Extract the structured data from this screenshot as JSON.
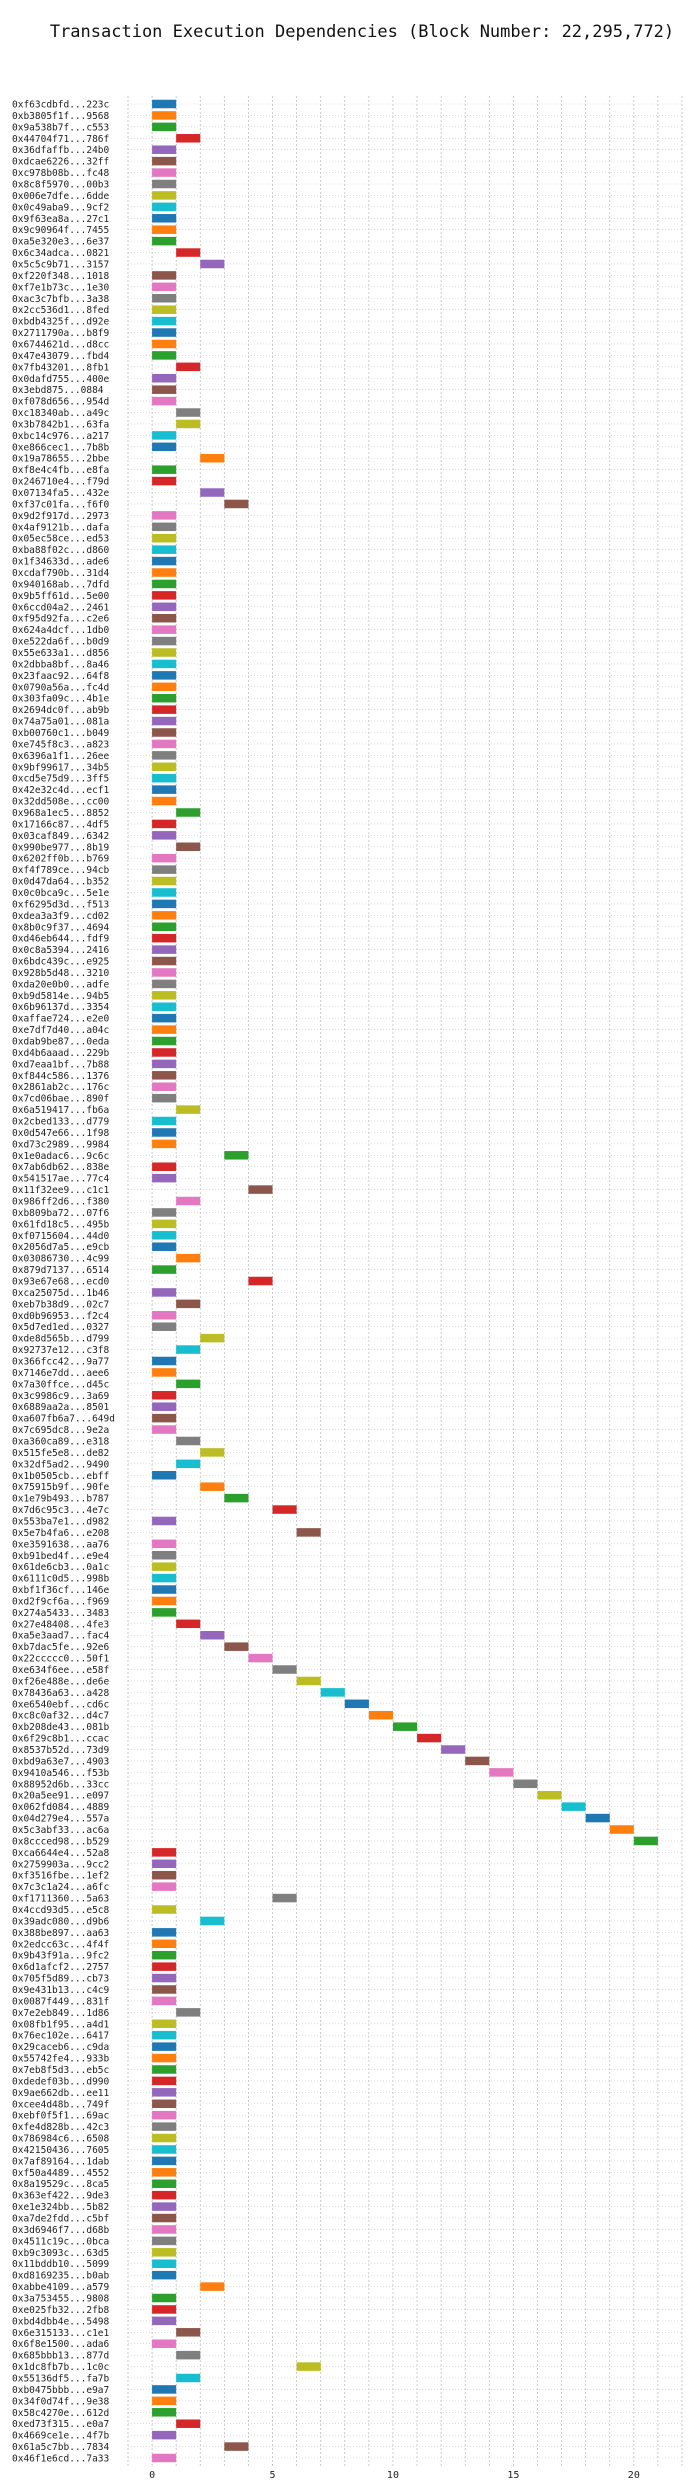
{
  "chart_data": {
    "type": "gantt",
    "title": "Transaction Execution Dependencies (Block Number: 22,295,772)",
    "xlabel": "",
    "ylabel": "",
    "xlim": [
      -1,
      22
    ],
    "x_ticks": [
      0,
      5,
      10,
      15,
      20
    ],
    "grid": true,
    "legend": "none",
    "palette": [
      "#1f77b4",
      "#ff7f0e",
      "#2ca02c",
      "#d62728",
      "#9467bd",
      "#8c564b",
      "#e377c2",
      "#7f7f7f",
      "#bcbd22",
      "#17becf"
    ],
    "transactions": [
      {
        "label": "0xf63cdbfd...223c",
        "start": 0,
        "end": 1
      },
      {
        "label": "0xb3805f1f...9568",
        "start": 0,
        "end": 1
      },
      {
        "label": "0x9a538b7f...c553",
        "start": 0,
        "end": 1
      },
      {
        "label": "0x44704f71...786f",
        "start": 1,
        "end": 2
      },
      {
        "label": "0x36dfaffb...24b0",
        "start": 0,
        "end": 1
      },
      {
        "label": "0xdcae6226...32ff",
        "start": 0,
        "end": 1
      },
      {
        "label": "0xc978b08b...fc48",
        "start": 0,
        "end": 1
      },
      {
        "label": "0x8c8f5970...00b3",
        "start": 0,
        "end": 1
      },
      {
        "label": "0x006e7dfe...6dde",
        "start": 0,
        "end": 1
      },
      {
        "label": "0x0c49aba9...9cf2",
        "start": 0,
        "end": 1
      },
      {
        "label": "0x9f63ea8a...27c1",
        "start": 0,
        "end": 1
      },
      {
        "label": "0x9c90964f...7455",
        "start": 0,
        "end": 1
      },
      {
        "label": "0xa5e320e3...6e37",
        "start": 0,
        "end": 1
      },
      {
        "label": "0x6c34adca...0821",
        "start": 1,
        "end": 2
      },
      {
        "label": "0x5c5c9b71...3157",
        "start": 2,
        "end": 3
      },
      {
        "label": "0xf220f348...1018",
        "start": 0,
        "end": 1
      },
      {
        "label": "0xf7e1b73c...1e30",
        "start": 0,
        "end": 1
      },
      {
        "label": "0xac3c7bfb...3a38",
        "start": 0,
        "end": 1
      },
      {
        "label": "0x2cc536d1...8fed",
        "start": 0,
        "end": 1
      },
      {
        "label": "0xbdb4325f...d92e",
        "start": 0,
        "end": 1
      },
      {
        "label": "0x2711790a...b8f9",
        "start": 0,
        "end": 1
      },
      {
        "label": "0x6744621d...d8cc",
        "start": 0,
        "end": 1
      },
      {
        "label": "0x47e43079...fbd4",
        "start": 0,
        "end": 1
      },
      {
        "label": "0x7fb43201...8fb1",
        "start": 1,
        "end": 2
      },
      {
        "label": "0x0dafd755...400e",
        "start": 0,
        "end": 1
      },
      {
        "label": "0x3ebd875...0884",
        "start": 0,
        "end": 1
      },
      {
        "label": "0xf078d656...954d",
        "start": 0,
        "end": 1
      },
      {
        "label": "0xc18340ab...a49c",
        "start": 1,
        "end": 2
      },
      {
        "label": "0x3b7842b1...63fa",
        "start": 1,
        "end": 2
      },
      {
        "label": "0xbc14c976...a217",
        "start": 0,
        "end": 1
      },
      {
        "label": "0xe866cec1...7b8b",
        "start": 0,
        "end": 1
      },
      {
        "label": "0x19a78655...2bbe",
        "start": 2,
        "end": 3
      },
      {
        "label": "0xf8e4c4fb...e8fa",
        "start": 0,
        "end": 1
      },
      {
        "label": "0x246710e4...f79d",
        "start": 0,
        "end": 1
      },
      {
        "label": "0x07134fa5...432e",
        "start": 2,
        "end": 3
      },
      {
        "label": "0xf37c01fa...f6f0",
        "start": 3,
        "end": 4
      },
      {
        "label": "0x9d2f917d...2973",
        "start": 0,
        "end": 1
      },
      {
        "label": "0x4af9121b...dafa",
        "start": 0,
        "end": 1
      },
      {
        "label": "0x05ec58ce...ed53",
        "start": 0,
        "end": 1
      },
      {
        "label": "0xba88f02c...d860",
        "start": 0,
        "end": 1
      },
      {
        "label": "0x1f34633d...ade6",
        "start": 0,
        "end": 1
      },
      {
        "label": "0xcdaf790b...31d4",
        "start": 0,
        "end": 1
      },
      {
        "label": "0x940168ab...7dfd",
        "start": 0,
        "end": 1
      },
      {
        "label": "0x9b5ff61d...5e00",
        "start": 0,
        "end": 1
      },
      {
        "label": "0x6ccd04a2...2461",
        "start": 0,
        "end": 1
      },
      {
        "label": "0xf95d92fa...c2e6",
        "start": 0,
        "end": 1
      },
      {
        "label": "0x624a4dcf...1db0",
        "start": 0,
        "end": 1
      },
      {
        "label": "0xe522da6f...b0d9",
        "start": 0,
        "end": 1
      },
      {
        "label": "0x55e633a1...d856",
        "start": 0,
        "end": 1
      },
      {
        "label": "0x2dbba8bf...8a46",
        "start": 0,
        "end": 1
      },
      {
        "label": "0x23faac92...64f8",
        "start": 0,
        "end": 1
      },
      {
        "label": "0x0790a56a...fc4d",
        "start": 0,
        "end": 1
      },
      {
        "label": "0x303fa09c...4b1e",
        "start": 0,
        "end": 1
      },
      {
        "label": "0x2694dc0f...ab9b",
        "start": 0,
        "end": 1
      },
      {
        "label": "0x74a75a01...081a",
        "start": 0,
        "end": 1
      },
      {
        "label": "0xb00760c1...b049",
        "start": 0,
        "end": 1
      },
      {
        "label": "0xe745f8c3...a823",
        "start": 0,
        "end": 1
      },
      {
        "label": "0x6396a1f1...26ee",
        "start": 0,
        "end": 1
      },
      {
        "label": "0x9bf99617...34b5",
        "start": 0,
        "end": 1
      },
      {
        "label": "0xcd5e75d9...3ff5",
        "start": 0,
        "end": 1
      },
      {
        "label": "0x42e32c4d...ecf1",
        "start": 0,
        "end": 1
      },
      {
        "label": "0x32dd508e...cc00",
        "start": 0,
        "end": 1
      },
      {
        "label": "0x968a1ec5...8852",
        "start": 1,
        "end": 2
      },
      {
        "label": "0x17166c87...4df5",
        "start": 0,
        "end": 1
      },
      {
        "label": "0x03caf849...6342",
        "start": 0,
        "end": 1
      },
      {
        "label": "0x990be977...8b19",
        "start": 1,
        "end": 2
      },
      {
        "label": "0x6202ff0b...b769",
        "start": 0,
        "end": 1
      },
      {
        "label": "0xf4f789ce...94cb",
        "start": 0,
        "end": 1
      },
      {
        "label": "0x0d47da64...b352",
        "start": 0,
        "end": 1
      },
      {
        "label": "0x0c0bca9c...5e1e",
        "start": 0,
        "end": 1
      },
      {
        "label": "0xf6295d3d...f513",
        "start": 0,
        "end": 1
      },
      {
        "label": "0xdea3a3f9...cd02",
        "start": 0,
        "end": 1
      },
      {
        "label": "0x8b0c9f37...4694",
        "start": 0,
        "end": 1
      },
      {
        "label": "0xd46eb644...fdf9",
        "start": 0,
        "end": 1
      },
      {
        "label": "0x0c8a5394...2416",
        "start": 0,
        "end": 1
      },
      {
        "label": "0x6bdc439c...e925",
        "start": 0,
        "end": 1
      },
      {
        "label": "0x928b5d48...3210",
        "start": 0,
        "end": 1
      },
      {
        "label": "0xda20e0b0...adfe",
        "start": 0,
        "end": 1
      },
      {
        "label": "0xb9d5814e...94b5",
        "start": 0,
        "end": 1
      },
      {
        "label": "0x6b96137d...3354",
        "start": 0,
        "end": 1
      },
      {
        "label": "0xaffae724...e2e0",
        "start": 0,
        "end": 1
      },
      {
        "label": "0xe7df7d40...a04c",
        "start": 0,
        "end": 1
      },
      {
        "label": "0xdab9be87...0eda",
        "start": 0,
        "end": 1
      },
      {
        "label": "0xd4b6aaad...229b",
        "start": 0,
        "end": 1
      },
      {
        "label": "0xd7eaa1bf...7b88",
        "start": 0,
        "end": 1
      },
      {
        "label": "0xf844c586...1376",
        "start": 0,
        "end": 1
      },
      {
        "label": "0x2861ab2c...176c",
        "start": 0,
        "end": 1
      },
      {
        "label": "0x7cd06bae...890f",
        "start": 0,
        "end": 1
      },
      {
        "label": "0x6a519417...fb6a",
        "start": 1,
        "end": 2
      },
      {
        "label": "0x2cbed133...d779",
        "start": 0,
        "end": 1
      },
      {
        "label": "0x0d547e66...1f98",
        "start": 0,
        "end": 1
      },
      {
        "label": "0xd73c2989...9984",
        "start": 0,
        "end": 1
      },
      {
        "label": "0x1e0adac6...9c6c",
        "start": 3,
        "end": 4
      },
      {
        "label": "0x7ab6db62...838e",
        "start": 0,
        "end": 1
      },
      {
        "label": "0x541517ae...77c4",
        "start": 0,
        "end": 1
      },
      {
        "label": "0x11f32ee9...c1c1",
        "start": 4,
        "end": 5
      },
      {
        "label": "0x986ff2d6...f380",
        "start": 1,
        "end": 2
      },
      {
        "label": "0xb809ba72...07f6",
        "start": 0,
        "end": 1
      },
      {
        "label": "0x61fd18c5...495b",
        "start": 0,
        "end": 1
      },
      {
        "label": "0xf0715604...44d0",
        "start": 0,
        "end": 1
      },
      {
        "label": "0x2056d7a5...e9cb",
        "start": 0,
        "end": 1
      },
      {
        "label": "0x03086730...4c99",
        "start": 1,
        "end": 2
      },
      {
        "label": "0x879d7137...6514",
        "start": 0,
        "end": 1
      },
      {
        "label": "0x93e67e68...ecd0",
        "start": 4,
        "end": 5
      },
      {
        "label": "0xca25075d...1b46",
        "start": 0,
        "end": 1
      },
      {
        "label": "0xeb7b38d9...02c7",
        "start": 1,
        "end": 2
      },
      {
        "label": "0xd0b96953...f2c4",
        "start": 0,
        "end": 1
      },
      {
        "label": "0x5d7ed1ed...0327",
        "start": 0,
        "end": 1
      },
      {
        "label": "0xde8d565b...d799",
        "start": 2,
        "end": 3
      },
      {
        "label": "0x92737e12...c3f8",
        "start": 1,
        "end": 2
      },
      {
        "label": "0x366fcc42...9a77",
        "start": 0,
        "end": 1
      },
      {
        "label": "0x7146e7dd...aee6",
        "start": 0,
        "end": 1
      },
      {
        "label": "0x7a30ffce...d45c",
        "start": 1,
        "end": 2
      },
      {
        "label": "0x3c9986c9...3a69",
        "start": 0,
        "end": 1
      },
      {
        "label": "0x6889aa2a...8501",
        "start": 0,
        "end": 1
      },
      {
        "label": "0xa607fb6a7...649d",
        "start": 0,
        "end": 1
      },
      {
        "label": "0x7c695dc8...9e2a",
        "start": 0,
        "end": 1
      },
      {
        "label": "0xa360ca89...e318",
        "start": 1,
        "end": 2
      },
      {
        "label": "0x515fe5e8...de82",
        "start": 2,
        "end": 3
      },
      {
        "label": "0x32df5ad2...9490",
        "start": 1,
        "end": 2
      },
      {
        "label": "0x1b0505cb...ebff",
        "start": 0,
        "end": 1
      },
      {
        "label": "0x75915b9f...90fe",
        "start": 2,
        "end": 3
      },
      {
        "label": "0x1e79b493...b787",
        "start": 3,
        "end": 4
      },
      {
        "label": "0x7d6c95c3...4e7c",
        "start": 5,
        "end": 6
      },
      {
        "label": "0x553ba7e1...d982",
        "start": 0,
        "end": 1
      },
      {
        "label": "0x5e7b4fa6...e208",
        "start": 6,
        "end": 7
      },
      {
        "label": "0xe3591638...aa76",
        "start": 0,
        "end": 1
      },
      {
        "label": "0xb91bed4f...e9e4",
        "start": 0,
        "end": 1
      },
      {
        "label": "0x61de6cb3...0a1c",
        "start": 0,
        "end": 1
      },
      {
        "label": "0x6111c0d5...998b",
        "start": 0,
        "end": 1
      },
      {
        "label": "0xbf1f36cf...146e",
        "start": 0,
        "end": 1
      },
      {
        "label": "0xd2f9cf6a...f969",
        "start": 0,
        "end": 1
      },
      {
        "label": "0x274a5433...3483",
        "start": 0,
        "end": 1
      },
      {
        "label": "0x27e48408...4fe3",
        "start": 1,
        "end": 2
      },
      {
        "label": "0xa5e3aad7...fac4",
        "start": 2,
        "end": 3
      },
      {
        "label": "0xb7dac5fe...92e6",
        "start": 3,
        "end": 4
      },
      {
        "label": "0x22ccccc0...50f1",
        "start": 4,
        "end": 5
      },
      {
        "label": "0xe634f6ee...e58f",
        "start": 5,
        "end": 6
      },
      {
        "label": "0xf26e488e...de6e",
        "start": 6,
        "end": 7
      },
      {
        "label": "0x78436a63...a428",
        "start": 7,
        "end": 8
      },
      {
        "label": "0xe6540ebf...cd6c",
        "start": 8,
        "end": 9
      },
      {
        "label": "0xc8c0af32...d4c7",
        "start": 9,
        "end": 10
      },
      {
        "label": "0xb208de43...081b",
        "start": 10,
        "end": 11
      },
      {
        "label": "0x6f29c8b1...ccac",
        "start": 11,
        "end": 12
      },
      {
        "label": "0x8537b52d...73d9",
        "start": 12,
        "end": 13
      },
      {
        "label": "0xbd9a63e7...4903",
        "start": 13,
        "end": 14
      },
      {
        "label": "0x9410a546...f53b",
        "start": 14,
        "end": 15
      },
      {
        "label": "0x88952d6b...33cc",
        "start": 15,
        "end": 16
      },
      {
        "label": "0x20a5ee91...e097",
        "start": 16,
        "end": 17
      },
      {
        "label": "0x062fd084...4889",
        "start": 17,
        "end": 18
      },
      {
        "label": "0x04d279e4...557a",
        "start": 18,
        "end": 19
      },
      {
        "label": "0x5c3abf33...ac6a",
        "start": 19,
        "end": 20
      },
      {
        "label": "0x8ccced98...b529",
        "start": 20,
        "end": 21
      },
      {
        "label": "0xca6644e4...52a8",
        "start": 0,
        "end": 1
      },
      {
        "label": "0x2759903a...9cc2",
        "start": 0,
        "end": 1
      },
      {
        "label": "0xf3516fbe...1ef2",
        "start": 0,
        "end": 1
      },
      {
        "label": "0x7c3c1a24...a6fc",
        "start": 0,
        "end": 1
      },
      {
        "label": "0xf1711360...5a63",
        "start": 5,
        "end": 6
      },
      {
        "label": "0x4ccd93d5...e5c8",
        "start": 0,
        "end": 1
      },
      {
        "label": "0x39adc080...d9b6",
        "start": 2,
        "end": 3
      },
      {
        "label": "0x388be897...aa63",
        "start": 0,
        "end": 1
      },
      {
        "label": "0x2edcc63c...4f4f",
        "start": 0,
        "end": 1
      },
      {
        "label": "0x9b43f91a...9fc2",
        "start": 0,
        "end": 1
      },
      {
        "label": "0x6d1afcf2...2757",
        "start": 0,
        "end": 1
      },
      {
        "label": "0x705f5d89...cb73",
        "start": 0,
        "end": 1
      },
      {
        "label": "0x9e431b13...c4c9",
        "start": 0,
        "end": 1
      },
      {
        "label": "0x0087f449...831f",
        "start": 0,
        "end": 1
      },
      {
        "label": "0x7e2eb849...1d86",
        "start": 1,
        "end": 2
      },
      {
        "label": "0x08fb1f95...a4d1",
        "start": 0,
        "end": 1
      },
      {
        "label": "0x76ec102e...6417",
        "start": 0,
        "end": 1
      },
      {
        "label": "0x29caceb6...c9da",
        "start": 0,
        "end": 1
      },
      {
        "label": "0x55742fe4...933b",
        "start": 0,
        "end": 1
      },
      {
        "label": "0x7eb8f5d3...eb5c",
        "start": 0,
        "end": 1
      },
      {
        "label": "0xdedef03b...d990",
        "start": 0,
        "end": 1
      },
      {
        "label": "0x9ae662db...ee11",
        "start": 0,
        "end": 1
      },
      {
        "label": "0xcee4d48b...749f",
        "start": 0,
        "end": 1
      },
      {
        "label": "0xebf0f5f1...69ac",
        "start": 0,
        "end": 1
      },
      {
        "label": "0xfe4d828b...42c3",
        "start": 0,
        "end": 1
      },
      {
        "label": "0x786984c6...6508",
        "start": 0,
        "end": 1
      },
      {
        "label": "0x42150436...7605",
        "start": 0,
        "end": 1
      },
      {
        "label": "0x7af89164...1dab",
        "start": 0,
        "end": 1
      },
      {
        "label": "0xf50a4489...4552",
        "start": 0,
        "end": 1
      },
      {
        "label": "0x8a19529c...8ca5",
        "start": 0,
        "end": 1
      },
      {
        "label": "0x363ef422...9de3",
        "start": 0,
        "end": 1
      },
      {
        "label": "0xe1e324bb...5b82",
        "start": 0,
        "end": 1
      },
      {
        "label": "0xa7de2fdd...c5bf",
        "start": 0,
        "end": 1
      },
      {
        "label": "0x3d6946f7...d68b",
        "start": 0,
        "end": 1
      },
      {
        "label": "0x4511c19c...0bca",
        "start": 0,
        "end": 1
      },
      {
        "label": "0xb9c3093c...63d5",
        "start": 0,
        "end": 1
      },
      {
        "label": "0x11bddb10...5099",
        "start": 0,
        "end": 1
      },
      {
        "label": "0xd8169235...b0ab",
        "start": 0,
        "end": 1
      },
      {
        "label": "0xabbe4109...a579",
        "start": 2,
        "end": 3
      },
      {
        "label": "0x3a753455...9808",
        "start": 0,
        "end": 1
      },
      {
        "label": "0xe025fb32...2fb8",
        "start": 0,
        "end": 1
      },
      {
        "label": "0xbd4dbb4e...5498",
        "start": 0,
        "end": 1
      },
      {
        "label": "0x6e315133...c1e1",
        "start": 1,
        "end": 2
      },
      {
        "label": "0x6f8e1500...ada6",
        "start": 0,
        "end": 1
      },
      {
        "label": "0x685bbb13...877d",
        "start": 1,
        "end": 2
      },
      {
        "label": "0x1dc8fb7b...1c0c",
        "start": 6,
        "end": 7
      },
      {
        "label": "0x55136df5...fa7b",
        "start": 1,
        "end": 2
      },
      {
        "label": "0xb0475bbb...e9a7",
        "start": 0,
        "end": 1
      },
      {
        "label": "0x34f0d74f...9e38",
        "start": 0,
        "end": 1
      },
      {
        "label": "0x58c4270e...612d",
        "start": 0,
        "end": 1
      },
      {
        "label": "0xed73f315...e0a7",
        "start": 1,
        "end": 2
      },
      {
        "label": "0x4669ce1e...4f7b",
        "start": 0,
        "end": 1
      },
      {
        "label": "0x61a5c7bb...7834",
        "start": 3,
        "end": 4
      },
      {
        "label": "0x46f1e6cd...7a33",
        "start": 0,
        "end": 1
      }
    ]
  }
}
